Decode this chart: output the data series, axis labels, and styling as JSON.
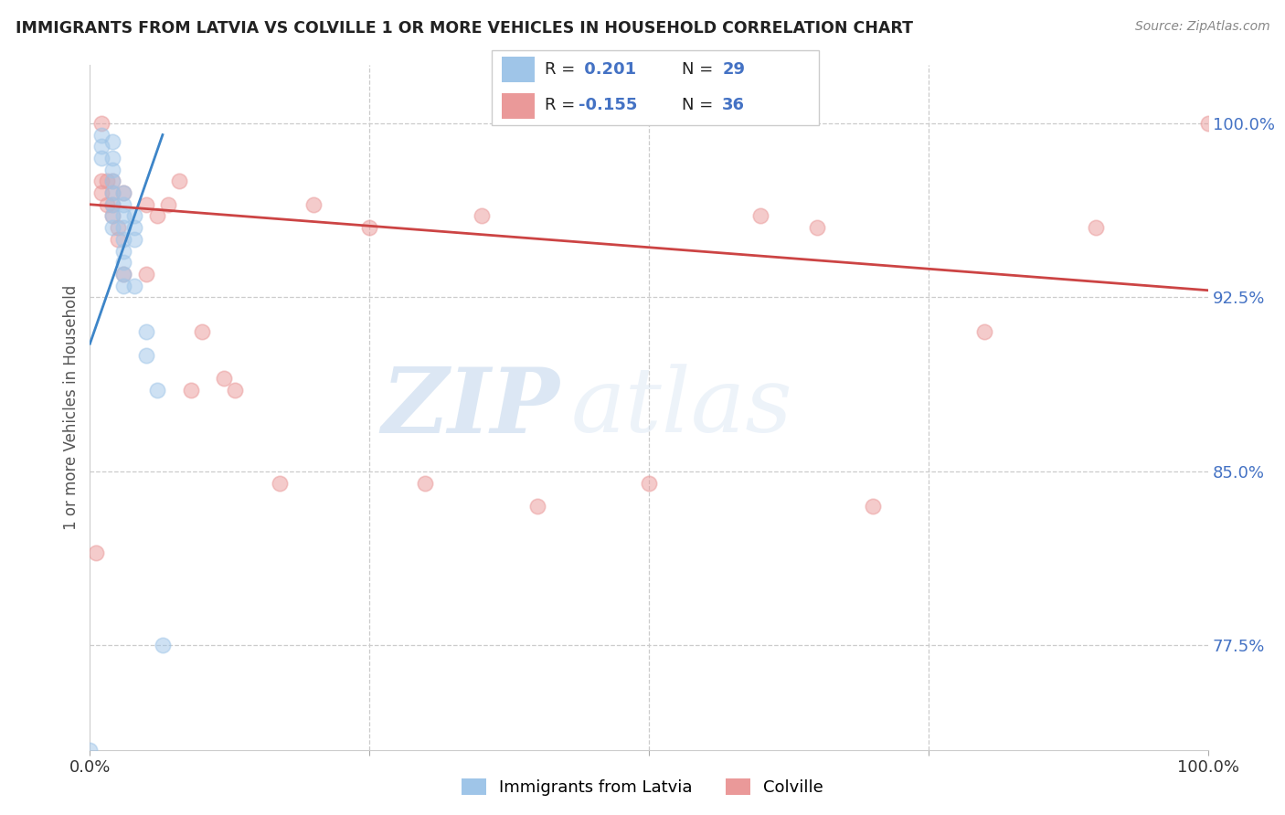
{
  "title": "IMMIGRANTS FROM LATVIA VS COLVILLE 1 OR MORE VEHICLES IN HOUSEHOLD CORRELATION CHART",
  "source": "Source: ZipAtlas.com",
  "ylabel": "1 or more Vehicles in Household",
  "yticks": [
    77.5,
    85.0,
    92.5,
    100.0
  ],
  "ytick_labels": [
    "77.5%",
    "85.0%",
    "92.5%",
    "100.0%"
  ],
  "legend_R_blue": "0.201",
  "legend_N_blue": "29",
  "legend_R_pink": "-0.155",
  "legend_N_pink": "36",
  "color_blue": "#9fc5e8",
  "color_pink": "#ea9999",
  "color_blue_line": "#3d85c8",
  "color_pink_line": "#cc4444",
  "watermark_zip": "ZIP",
  "watermark_atlas": "atlas",
  "blue_scatter_x": [
    0.0,
    0.01,
    0.01,
    0.01,
    0.02,
    0.02,
    0.02,
    0.02,
    0.02,
    0.02,
    0.02,
    0.02,
    0.03,
    0.03,
    0.03,
    0.03,
    0.03,
    0.03,
    0.03,
    0.03,
    0.03,
    0.04,
    0.04,
    0.04,
    0.04,
    0.05,
    0.05,
    0.06,
    0.065
  ],
  "blue_scatter_y": [
    0.0,
    99.5,
    99.0,
    98.5,
    99.2,
    98.5,
    98.0,
    97.5,
    97.0,
    96.5,
    96.0,
    95.5,
    97.0,
    96.5,
    96.0,
    95.5,
    95.0,
    94.5,
    94.0,
    93.5,
    93.0,
    96.0,
    95.5,
    95.0,
    93.0,
    91.0,
    90.0,
    88.5,
    77.5
  ],
  "pink_scatter_x": [
    0.005,
    0.01,
    0.01,
    0.01,
    0.015,
    0.015,
    0.02,
    0.02,
    0.02,
    0.02,
    0.025,
    0.025,
    0.03,
    0.03,
    0.05,
    0.05,
    0.06,
    0.07,
    0.08,
    0.09,
    0.1,
    0.12,
    0.13,
    0.17,
    0.2,
    0.25,
    0.3,
    0.35,
    0.4,
    0.5,
    0.6,
    0.65,
    0.7,
    0.8,
    0.9,
    1.0
  ],
  "pink_scatter_y": [
    81.5,
    100.0,
    97.5,
    97.0,
    97.5,
    96.5,
    97.0,
    96.5,
    96.0,
    97.5,
    95.5,
    95.0,
    97.0,
    93.5,
    96.5,
    93.5,
    96.0,
    96.5,
    97.5,
    88.5,
    91.0,
    89.0,
    88.5,
    84.5,
    96.5,
    95.5,
    84.5,
    96.0,
    83.5,
    84.5,
    96.0,
    95.5,
    83.5,
    91.0,
    95.5,
    100.0
  ],
  "blue_line_x": [
    0.0,
    0.065
  ],
  "blue_line_y": [
    90.5,
    99.5
  ],
  "pink_line_x": [
    0.0,
    1.0
  ],
  "pink_line_y": [
    96.5,
    92.8
  ],
  "xmin": 0.0,
  "xmax": 1.0,
  "ymin": 73.0,
  "ymax": 102.5
}
